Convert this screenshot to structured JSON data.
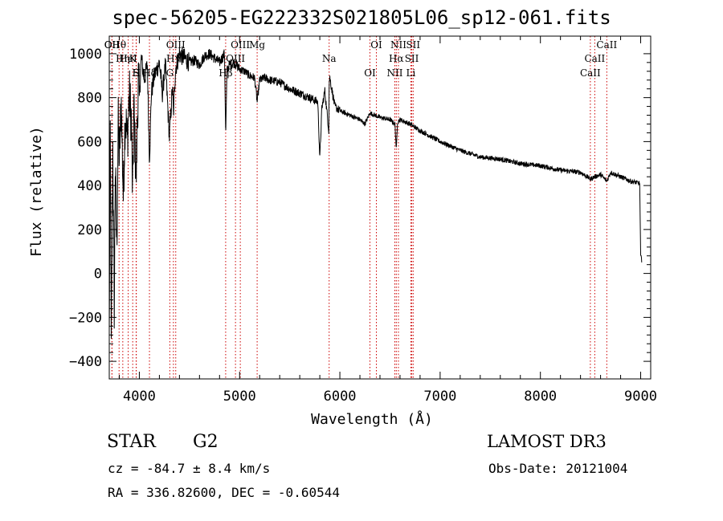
{
  "chart_data": {
    "type": "line",
    "title": "spec-56205-EG222332S021805L06_sp12-061.fits",
    "xlabel": "Wavelength (Å)",
    "ylabel": "Flux (relative)",
    "xlim": [
      3700,
      9100
    ],
    "ylim": [
      -480,
      1080
    ],
    "xticks": [
      4000,
      5000,
      6000,
      7000,
      8000,
      9000
    ],
    "yticks": [
      -400,
      -200,
      0,
      200,
      400,
      600,
      800,
      1000
    ],
    "spectrum_anchors": {
      "x": [
        3700,
        3710,
        3720,
        3735,
        3750,
        3760,
        3775,
        3790,
        3800,
        3820,
        3840,
        3860,
        3880,
        3900,
        3920,
        3933,
        3945,
        3968,
        3990,
        4000,
        4020,
        4050,
        4080,
        4101,
        4120,
        4150,
        4200,
        4230,
        4260,
        4300,
        4330,
        4340,
        4360,
        4400,
        4450,
        4500,
        4550,
        4600,
        4650,
        4700,
        4750,
        4800,
        4850,
        4861,
        4875,
        4900,
        4950,
        5000,
        5050,
        5100,
        5150,
        5175,
        5200,
        5250,
        5300,
        5400,
        5500,
        5600,
        5700,
        5780,
        5800,
        5820,
        5850,
        5890,
        5893,
        5900,
        5950,
        6000,
        6100,
        6200,
        6250,
        6300,
        6400,
        6500,
        6550,
        6563,
        6575,
        6600,
        6700,
        6800,
        7000,
        7200,
        7400,
        7600,
        7800,
        8000,
        8200,
        8400,
        8498,
        8542,
        8600,
        8662,
        8700,
        8800,
        8900,
        8990,
        9000,
        9010
      ],
      "y": [
        -300,
        650,
        -350,
        580,
        -150,
        500,
        120,
        680,
        520,
        780,
        350,
        740,
        600,
        820,
        700,
        340,
        760,
        420,
        900,
        800,
        980,
        880,
        950,
        520,
        820,
        900,
        960,
        820,
        950,
        620,
        850,
        720,
        930,
        1000,
        980,
        960,
        970,
        950,
        990,
        1000,
        980,
        960,
        1000,
        620,
        930,
        950,
        960,
        930,
        920,
        900,
        890,
        780,
        880,
        890,
        880,
        870,
        840,
        820,
        800,
        780,
        520,
        750,
        830,
        650,
        880,
        890,
        760,
        740,
        720,
        700,
        680,
        730,
        710,
        700,
        680,
        560,
        690,
        700,
        680,
        650,
        600,
        560,
        530,
        520,
        500,
        490,
        470,
        460,
        430,
        440,
        450,
        420,
        460,
        440,
        420,
        410,
        80,
        60
      ]
    },
    "lines": [
      {
        "label": "Hθ",
        "wave": 3798
      },
      {
        "label": "K",
        "wave": 3934
      },
      {
        "label": "Hδ",
        "wave": 4101
      },
      {
        "label": "OII",
        "wave": 3727
      },
      {
        "label": "HeI",
        "wave": 3889
      },
      {
        "label": "S",
        "wave": 3968
      },
      {
        "label": "OII",
        "wave": 3727
      },
      {
        "label": "Hη",
        "wave": 3835
      },
      {
        "label": "H",
        "wave": 3970
      },
      {
        "label": "OIII",
        "wave": 4363
      },
      {
        "label": "Hγ",
        "wave": 4340
      },
      {
        "label": "G",
        "wave": 4304
      },
      {
        "label": "OIII",
        "wave": 5007
      },
      {
        "label": "OIII",
        "wave": 4959
      },
      {
        "label": "Hβ",
        "wave": 4861
      },
      {
        "label": "Mg",
        "wave": 5175
      },
      {
        "label": "Na",
        "wave": 5893
      },
      {
        "label": "OI",
        "wave": 6300
      },
      {
        "label": "OI",
        "wave": 6364
      },
      {
        "label": "Hα",
        "wave": 6563
      },
      {
        "label": "NII",
        "wave": 6548
      },
      {
        "label": "NII",
        "wave": 6584
      },
      {
        "label": "SII",
        "wave": 6717
      },
      {
        "label": "Li",
        "wave": 6708
      },
      {
        "label": "SII",
        "wave": 6731
      },
      {
        "label": "CaII",
        "wave": 8542
      },
      {
        "label": "CaII",
        "wave": 8498
      },
      {
        "label": "CaII",
        "wave": 8662
      }
    ]
  },
  "footer": {
    "object_type": "STAR",
    "subclass": "G2",
    "cz_text": "cz = -84.7 ± 8.4 km/s",
    "coords_text": "RA = 336.82600, DEC =  -0.60544",
    "survey": "LAMOST DR3",
    "obs_date": "Obs-Date: 20121004"
  }
}
